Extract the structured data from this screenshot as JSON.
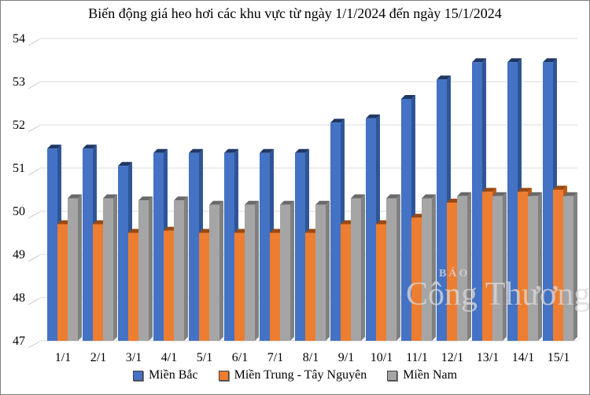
{
  "title": "Biến động giá heo hơi các khu vực từ ngày 1/1/2024 đến ngày 15/1/2024",
  "watermark": {
    "line1": "BÁO",
    "line2": "Công Thương"
  },
  "colors": {
    "grid": "#d9d9d9",
    "tick": "#c6c6c6",
    "text": "#000000",
    "mien_bac": "#4472c4",
    "mien_trung": "#ed7d31",
    "mien_nam": "#a5a5a5"
  },
  "chart_data": {
    "type": "bar",
    "style": "3d-clustered-column",
    "title": "Biến động giá heo hơi các khu vực từ ngày 1/1/2024 đến ngày 15/1/2024",
    "xlabel": "",
    "ylabel": "",
    "ylim": [
      47,
      54
    ],
    "ytick_step": 1,
    "yticks": [
      47,
      48,
      49,
      50,
      51,
      52,
      53,
      54
    ],
    "grid": true,
    "legend_position": "bottom",
    "categories": [
      "1/1",
      "2/1",
      "3/1",
      "4/1",
      "5/1",
      "6/1",
      "7/1",
      "8/1",
      "9/1",
      "10/1",
      "11/1",
      "12/1",
      "13/1",
      "14/1",
      "15/1"
    ],
    "series": [
      {
        "name": "Miền Bắc",
        "color": "#4472c4",
        "side": "#2f5597",
        "top": "#1f3864",
        "values": [
          51.45,
          51.45,
          51.05,
          51.35,
          51.35,
          51.35,
          51.35,
          51.35,
          52.05,
          52.15,
          52.6,
          53.05,
          53.45,
          53.45,
          53.45
        ]
      },
      {
        "name": "Miền Trung - Tây Nguyên",
        "color": "#ed7d31",
        "side": "#c05a15",
        "top": "#9a4a12",
        "values": [
          49.7,
          49.7,
          49.5,
          49.55,
          49.5,
          49.5,
          49.5,
          49.5,
          49.7,
          49.7,
          49.85,
          50.2,
          50.45,
          50.45,
          50.5
        ]
      },
      {
        "name": "Miền Nam",
        "color": "#a5a5a5",
        "side": "#808080",
        "top": "#696969",
        "values": [
          50.3,
          50.3,
          50.25,
          50.25,
          50.15,
          50.15,
          50.15,
          50.15,
          50.3,
          50.3,
          50.3,
          50.35,
          50.35,
          50.35,
          50.35
        ]
      }
    ]
  }
}
